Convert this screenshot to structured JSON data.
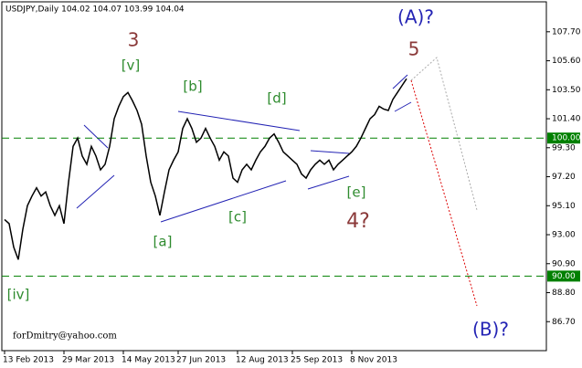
{
  "chart_data": {
    "type": "line",
    "title": "USDJPY,Daily  104.02 104.07 103.99 104.04",
    "footer": "forDmitry@yahoo.com",
    "categories": [
      "13 Feb 2013",
      null,
      null,
      null,
      null,
      null,
      null,
      null,
      null,
      null,
      null,
      null,
      null,
      "29 Mar 2013",
      null,
      null,
      null,
      null,
      null,
      null,
      null,
      null,
      null,
      null,
      null,
      null,
      "14 May 2013",
      null,
      null,
      null,
      null,
      null,
      null,
      null,
      null,
      null,
      null,
      null,
      "27 Jun 2013",
      null,
      null,
      null,
      null,
      null,
      null,
      null,
      null,
      null,
      null,
      null,
      null,
      "12 Aug 2013",
      null,
      null,
      null,
      null,
      null,
      null,
      null,
      null,
      null,
      null,
      null,
      "25 Sep 2013",
      null,
      null,
      null,
      null,
      null,
      null,
      null,
      null,
      null,
      null,
      null,
      null,
      "8 Nov 2013",
      null,
      null,
      null,
      null,
      null,
      null,
      null,
      null,
      null,
      null,
      null,
      null
    ],
    "series": [
      {
        "name": "USDJPY",
        "color": "#000000",
        "values": [
          94.1,
          93.8,
          92.1,
          91.2,
          93.4,
          95.1,
          95.8,
          96.4,
          95.8,
          96.1,
          95.1,
          94.4,
          95.1,
          93.8,
          96.8,
          99.4,
          100.0,
          98.7,
          98.1,
          99.4,
          98.7,
          97.7,
          98.1,
          99.4,
          101.4,
          102.3,
          103.0,
          103.3,
          102.7,
          102.0,
          101.0,
          98.7,
          96.8,
          95.8,
          94.4,
          96.1,
          97.7,
          98.4,
          99.0,
          100.7,
          101.4,
          100.7,
          99.7,
          100.0,
          100.7,
          100.0,
          99.4,
          98.4,
          99.0,
          98.7,
          97.1,
          96.8,
          97.7,
          98.1,
          97.7,
          98.4,
          99.0,
          99.4,
          100.0,
          100.3,
          99.7,
          99.0,
          98.7,
          98.4,
          98.1,
          97.4,
          97.1,
          97.7,
          98.1,
          98.4,
          98.1,
          98.4,
          97.7,
          98.1,
          98.4,
          98.7,
          99.0,
          99.4,
          100.0,
          100.7,
          101.4,
          101.7,
          102.3,
          102.1,
          102.0,
          102.8,
          103.3,
          103.8,
          104.3
        ]
      }
    ],
    "ylim": [
      84.6,
      109.87
    ],
    "yticks": [
      {
        "value": 107.7,
        "label": "107.70"
      },
      {
        "value": 105.6,
        "label": "105.60"
      },
      {
        "value": 103.5,
        "label": "103.50"
      },
      {
        "value": 101.4,
        "label": "101.40"
      },
      {
        "value": 99.3,
        "label": "99.30"
      },
      {
        "value": 97.2,
        "label": "97.20"
      },
      {
        "value": 95.1,
        "label": "95.10"
      },
      {
        "value": 93.0,
        "label": "93.00"
      },
      {
        "value": 90.9,
        "label": "90.90"
      },
      {
        "value": 88.8,
        "label": "88.80"
      },
      {
        "value": 86.7,
        "label": "86.70"
      }
    ],
    "hlines": [
      {
        "value": 100,
        "label": "100.00",
        "color": "#008000"
      },
      {
        "value": 90,
        "label": "90.00",
        "color": "#008000"
      }
    ],
    "annotations": [
      {
        "text": "(A)?",
        "color": "#2323b4"
      },
      {
        "text": "5",
        "color": "#8b3a3a"
      },
      {
        "text": "3",
        "color": "#8b3a3a"
      },
      {
        "text": "[v]",
        "color": "#2e8b2e"
      },
      {
        "text": "[b]",
        "color": "#2e8b2e"
      },
      {
        "text": "[d]",
        "color": "#2e8b2e"
      },
      {
        "text": "[a]",
        "color": "#2e8b2e"
      },
      {
        "text": "[c]",
        "color": "#2e8b2e"
      },
      {
        "text": "[e]",
        "color": "#2e8b2e"
      },
      {
        "text": "4?",
        "color": "#8b3a3a"
      },
      {
        "text": "[iv]",
        "color": "#2e8b2e"
      },
      {
        "text": "(B)?",
        "color": "#2323b4"
      }
    ]
  }
}
